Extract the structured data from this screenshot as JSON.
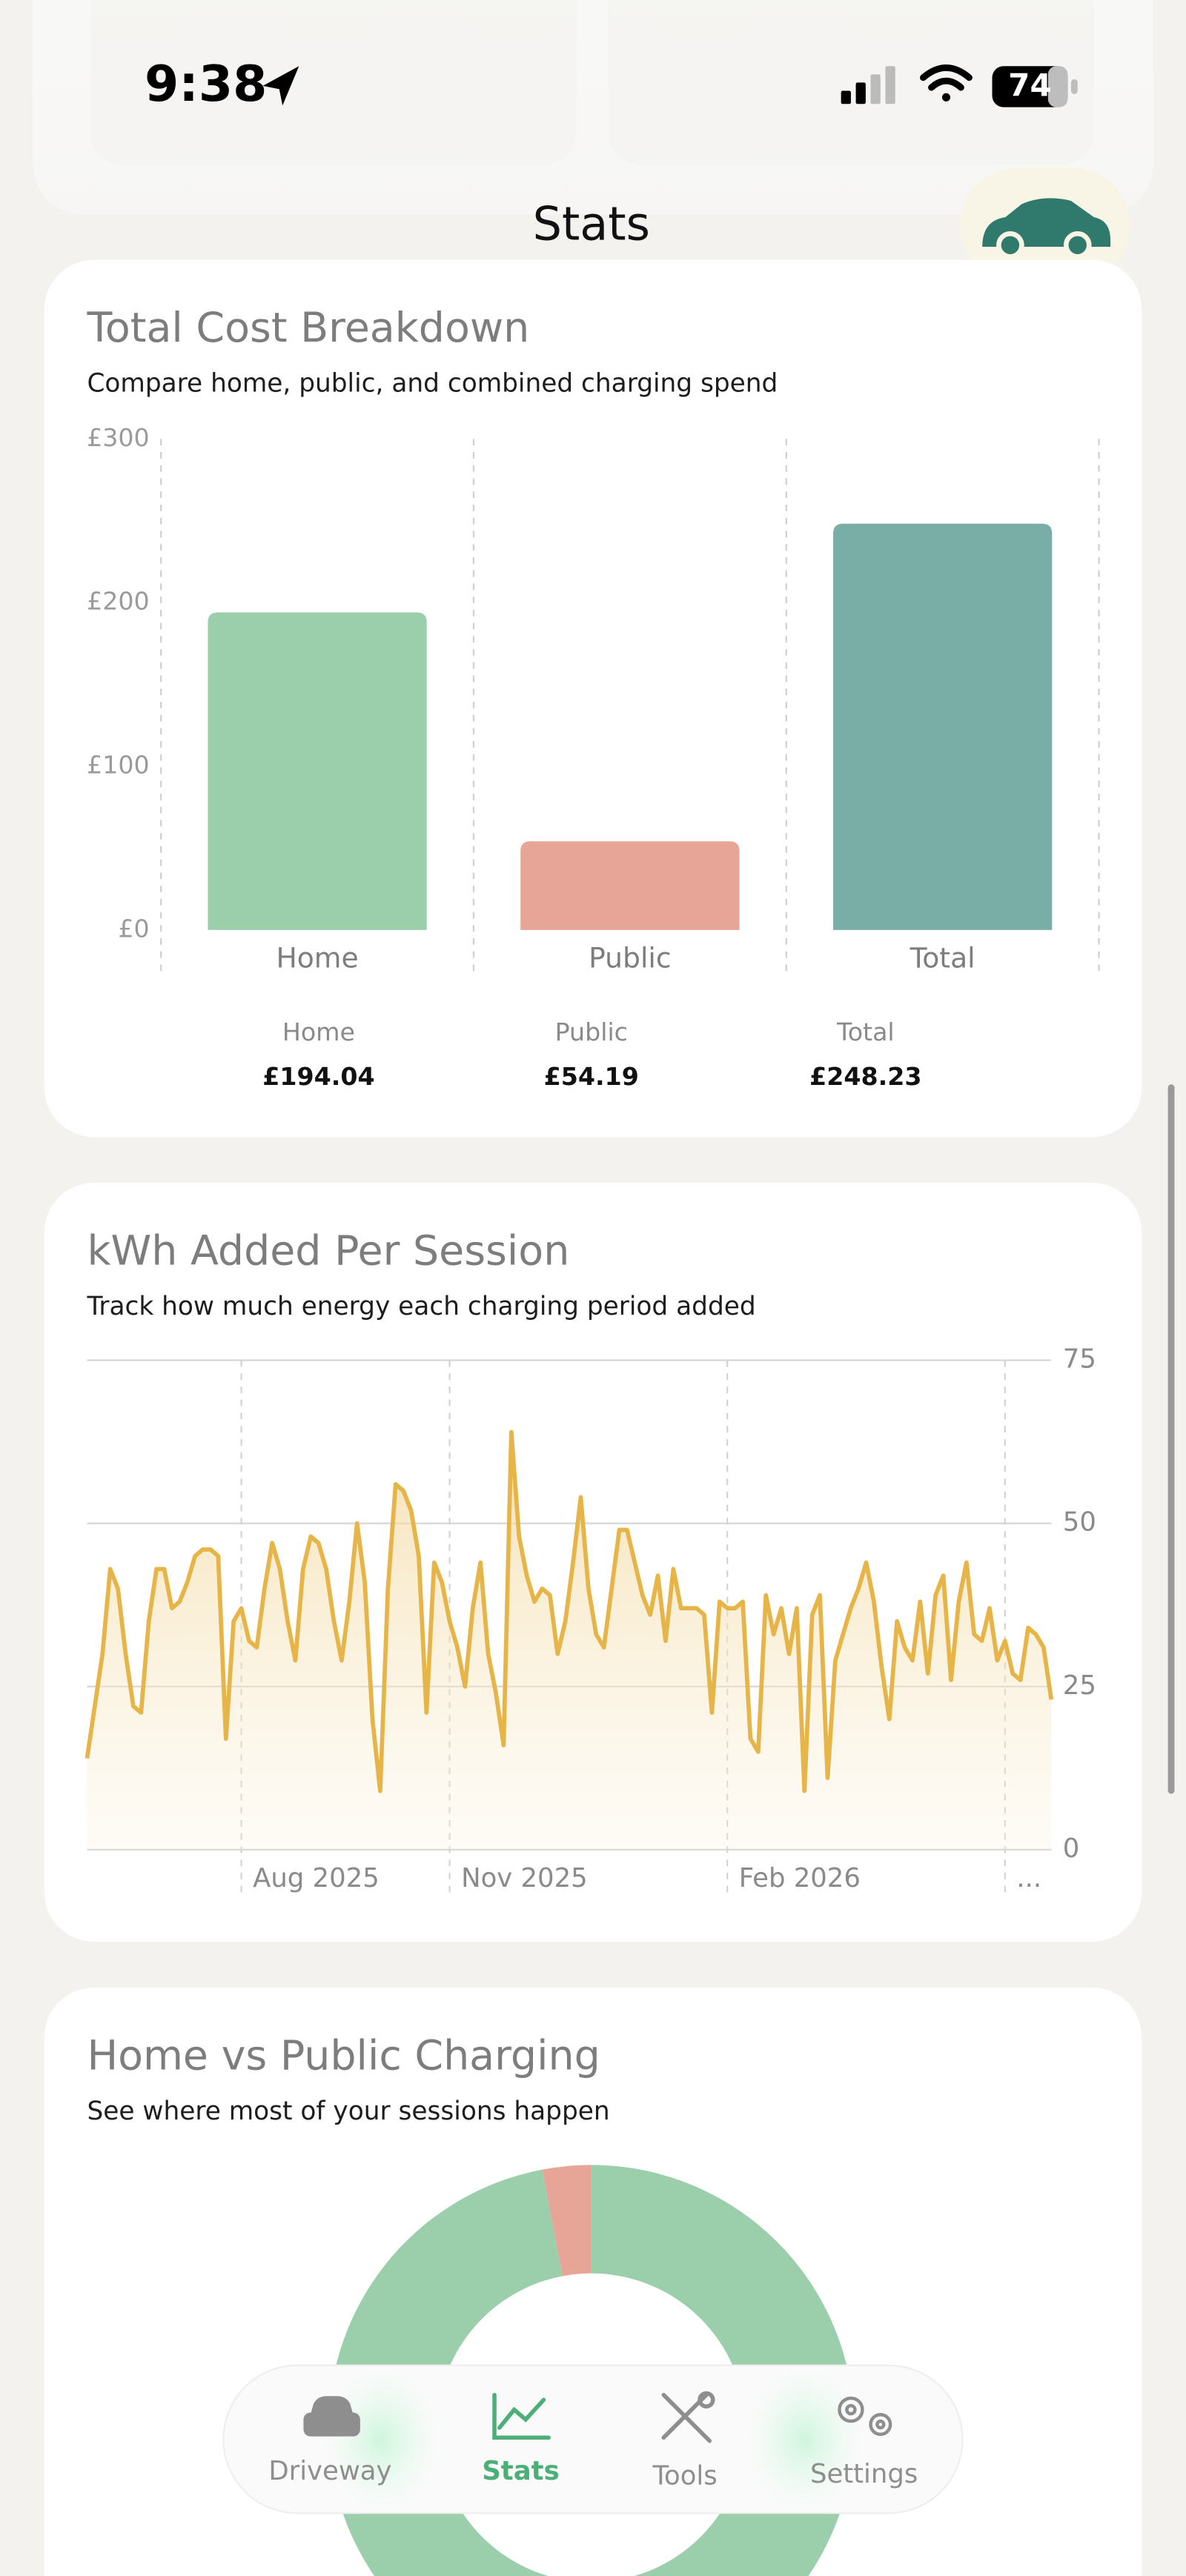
{
  "status_bar": {
    "time": "9:38",
    "battery": "74"
  },
  "header": {
    "title": "Stats"
  },
  "chart_data": [
    {
      "type": "bar",
      "title": "Total Cost Breakdown",
      "subtitle": "Compare home, public, and combined charging spend",
      "categories": [
        "Home",
        "Public",
        "Total"
      ],
      "values": [
        194.04,
        54.19,
        248.23
      ],
      "value_labels": [
        "£194.04",
        "£54.19",
        "£248.23"
      ],
      "colors": [
        "#9bcfab",
        "#e6a596",
        "#79aea7"
      ],
      "ylim": [
        0,
        300
      ],
      "yticks": [
        {
          "value": 0,
          "label": "£0"
        },
        {
          "value": 100,
          "label": "£100"
        },
        {
          "value": 200,
          "label": "£200"
        },
        {
          "value": 300,
          "label": "£300"
        }
      ]
    },
    {
      "type": "line",
      "title": "kWh Added Per Session",
      "subtitle": "Track how much energy each charging period added",
      "categories": [
        null,
        null,
        null,
        null,
        null,
        null,
        null,
        null,
        null,
        null,
        null,
        null,
        null,
        null,
        null,
        null,
        null,
        null,
        null,
        null,
        null,
        null,
        null,
        null,
        null,
        null,
        null,
        null,
        null,
        null,
        null,
        null,
        null,
        null,
        null,
        null,
        null,
        null,
        null,
        null,
        null,
        null,
        null,
        null,
        null,
        null,
        null,
        null,
        null,
        null,
        null,
        null,
        null,
        null,
        null,
        null,
        null,
        null,
        null,
        null,
        null,
        null,
        null,
        null,
        null,
        null,
        null,
        null,
        null,
        null,
        null,
        null,
        null,
        null,
        null,
        null,
        null,
        null,
        null,
        null,
        null,
        null,
        null,
        null,
        null,
        null,
        null,
        null,
        null,
        null,
        null,
        null,
        null,
        null,
        null,
        null,
        null,
        null,
        null,
        null,
        null,
        null,
        null,
        null,
        null,
        null,
        null,
        null,
        null,
        null,
        null,
        null,
        null,
        null,
        null,
        null,
        null,
        null,
        null,
        null,
        null,
        null,
        null,
        null,
        null,
        null
      ],
      "series": [
        {
          "color": "#e7b447",
          "values": [
            14,
            22,
            30,
            43,
            40,
            30,
            22,
            21,
            35,
            43,
            43,
            37,
            38,
            41,
            45,
            46,
            46,
            45,
            17,
            35,
            37,
            32,
            31,
            40,
            47,
            43,
            35,
            29,
            43,
            48,
            47,
            43,
            35,
            29,
            38,
            50,
            41,
            20,
            9,
            40,
            56,
            55,
            52,
            45,
            21,
            44,
            41,
            35,
            31,
            25,
            37,
            44,
            30,
            24,
            16,
            64,
            48,
            42,
            38,
            40,
            39,
            30,
            35,
            44,
            54,
            40,
            33,
            31,
            40,
            49,
            49,
            44,
            39,
            36,
            42,
            32,
            43,
            37,
            37,
            37,
            36,
            21,
            38,
            37,
            37,
            38,
            17,
            15,
            39,
            33,
            37,
            30,
            37,
            9,
            36,
            39,
            11,
            29,
            33,
            37,
            40,
            44,
            38,
            28,
            20,
            35,
            31,
            29,
            38,
            27,
            39,
            42,
            26,
            38,
            44,
            33,
            32,
            37,
            29,
            32,
            27,
            26,
            34,
            33,
            31,
            23
          ]
        }
      ],
      "ylim": [
        0,
        75
      ],
      "yticks": [
        0,
        25,
        50,
        75
      ],
      "xticks": [
        {
          "value": 20,
          "label": "Aug 2025"
        },
        {
          "value": 47,
          "label": "Nov 2025"
        },
        {
          "value": 83,
          "label": "Feb 2026"
        },
        {
          "value": 119,
          "label": "..."
        }
      ],
      "grid": true
    },
    {
      "type": "pie",
      "title": "Home vs Public Charging",
      "subtitle": "See where most of your sessions happen",
      "values": [
        97,
        3
      ],
      "colors": [
        "#9bcfab",
        "#e6a596"
      ]
    }
  ],
  "nav": {
    "items": [
      "Driveway",
      "Stats",
      "Tools",
      "Settings"
    ],
    "active": "Stats"
  }
}
